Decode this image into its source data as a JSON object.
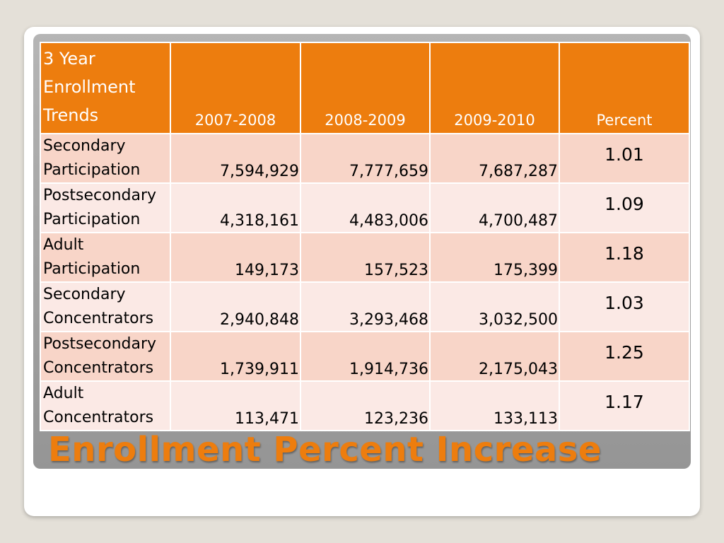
{
  "slide": {
    "title": "Enrollment Percent Increase"
  },
  "table": {
    "headers": [
      "3 Year Enrollment Trends",
      "2007-2008",
      "2008-2009",
      "2009-2010",
      "Percent"
    ],
    "rows": [
      {
        "label": "Secondary Participation",
        "values": [
          "7,594,929",
          "7,777,659",
          "7,687,287"
        ],
        "percent": "1.01"
      },
      {
        "label": "Postsecondary Participation",
        "values": [
          "4,318,161",
          "4,483,006",
          "4,700,487"
        ],
        "percent": "1.09"
      },
      {
        "label": "Adult Participation",
        "values": [
          "149,173",
          "157,523",
          "175,399"
        ],
        "percent": "1.18"
      },
      {
        "label": "Secondary Concentrators",
        "values": [
          "2,940,848",
          "3,293,468",
          "3,032,500"
        ],
        "percent": "1.03"
      },
      {
        "label": "Postsecondary Concentrators",
        "values": [
          "1,739,911",
          "1,914,736",
          "2,175,043"
        ],
        "percent": "1.25"
      },
      {
        "label": "Adult Concentrators",
        "values": [
          "113,471",
          "123,236",
          "133,113"
        ],
        "percent": "1.17"
      }
    ]
  },
  "colors": {
    "accent": "#ed7d0e",
    "row_odd": "#f8d5c8",
    "row_even": "#fbe9e5"
  }
}
